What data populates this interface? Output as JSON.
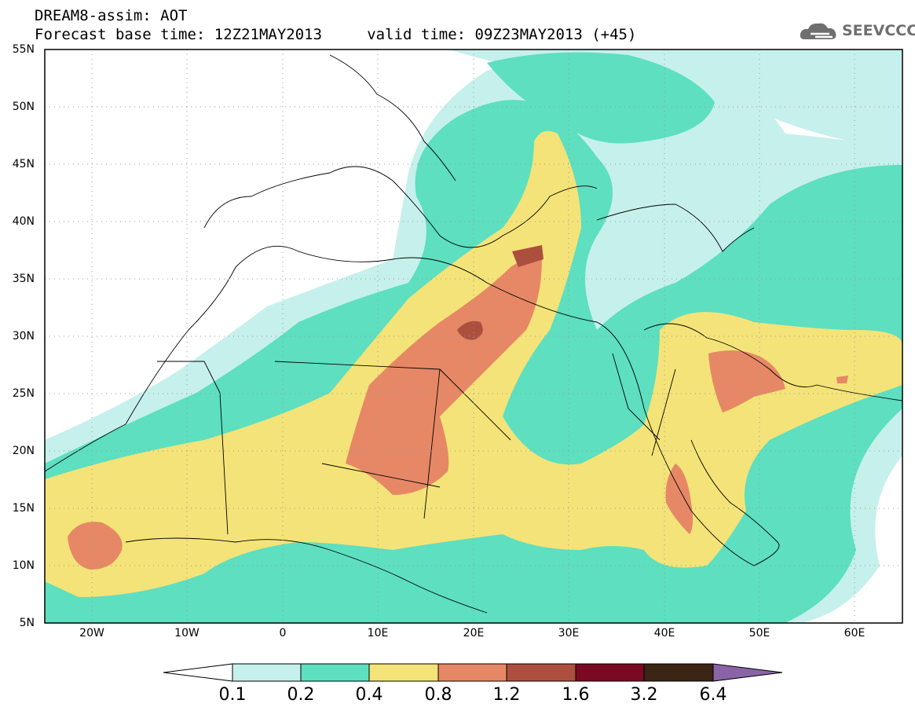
{
  "header": {
    "line1": "DREAM8-assim: AOT",
    "line2": "Forecast base time: 12Z21MAY2013     valid time: 09Z23MAY2013 (+45)",
    "logo_text": "SEEVCCC"
  },
  "axes": {
    "lat_labels": [
      "55N",
      "50N",
      "45N",
      "40N",
      "35N",
      "30N",
      "25N",
      "20N",
      "15N",
      "10N",
      "5N"
    ],
    "lon_labels": [
      "20W",
      "10W",
      "0",
      "10E",
      "20E",
      "30E",
      "40E",
      "50E",
      "60E"
    ]
  },
  "colorbar": {
    "labels": [
      "0.1",
      "0.2",
      "0.4",
      "0.8",
      "1.2",
      "1.6",
      "3.2",
      "6.4"
    ],
    "colors": [
      "#ffffff",
      "#c6f0ec",
      "#5ddfc0",
      "#f4e378",
      "#e68866",
      "#ad4f3e",
      "#7a0a24",
      "#3b2515",
      "#8a64a6"
    ]
  },
  "chart_data": {
    "type": "heatmap",
    "variable": "AOT",
    "lat_range": [
      5,
      55
    ],
    "lon_range": [
      -25,
      65
    ],
    "levels": [
      0.1,
      0.2,
      0.4,
      0.8,
      1.2,
      1.6,
      3.2,
      6.4
    ]
  }
}
